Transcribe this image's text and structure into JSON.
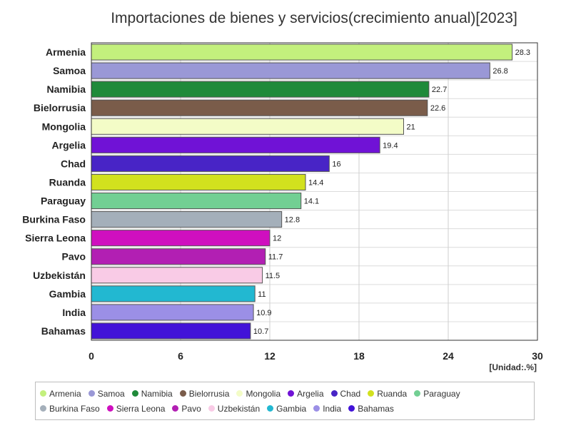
{
  "title": "Importaciones de bienes y servicios(crecimiento anual)[2023]",
  "unit_label": "[Unidad:.%]",
  "chart_data": {
    "type": "bar",
    "orientation": "horizontal",
    "title": "Importaciones de bienes y servicios(crecimiento anual)[2023]",
    "xlabel": "",
    "ylabel": "",
    "unit": "[Unidad:.%]",
    "xlim": [
      0,
      30
    ],
    "xticks": [
      0,
      6,
      12,
      18,
      24,
      30
    ],
    "grid": true,
    "legend_position": "bottom",
    "categories": [
      "Armenia",
      "Samoa",
      "Namibia",
      "Bielorrusia",
      "Mongolia",
      "Argelia",
      "Chad",
      "Ruanda",
      "Paraguay",
      "Burkina Faso",
      "Sierra Leona",
      "Pavo",
      "Uzbekistán",
      "Gambia",
      "India",
      "Bahamas"
    ],
    "values": [
      28.3,
      26.8,
      22.7,
      22.6,
      21,
      19.4,
      16,
      14.4,
      14.1,
      12.8,
      12,
      11.7,
      11.5,
      11,
      10.9,
      10.7
    ],
    "value_labels": [
      "28.3",
      "26.8",
      "22.7",
      "22.6",
      "21",
      "19.4",
      "16",
      "14.4",
      "14.1",
      "12.8",
      "12",
      "11.7",
      "11.5",
      "11",
      "10.9",
      "10.7"
    ],
    "colors": [
      "#c3f07d",
      "#9a98d6",
      "#1f8a3a",
      "#7a5c4a",
      "#f3fcc7",
      "#7012d6",
      "#4824c6",
      "#d2e11e",
      "#72cf93",
      "#a4afba",
      "#cf0fbf",
      "#b21fb3",
      "#f9cbe6",
      "#22b8d1",
      "#9b8fe6",
      "#4213d8"
    ]
  }
}
